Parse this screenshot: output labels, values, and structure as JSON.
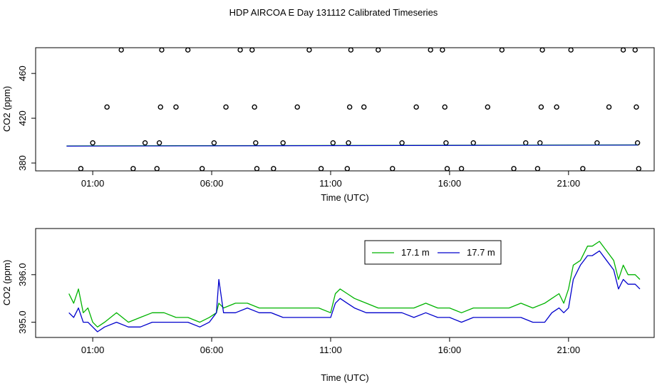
{
  "title": "HDP AIRCOA E  Day 131112  Calibrated Timeseries",
  "chart_data": [
    {
      "type": "scatter",
      "xlabel": "Time (UTC)",
      "ylabel": "CO2 (ppm)",
      "x_unit": "hours UTC",
      "xlim": [
        -1.4,
        24.6
      ],
      "ylim": [
        373,
        483
      ],
      "x_ticks": [
        {
          "value": 1,
          "label": "01:00"
        },
        {
          "value": 6,
          "label": "06:00"
        },
        {
          "value": 11,
          "label": "11:00"
        },
        {
          "value": 16,
          "label": "16:00"
        },
        {
          "value": 21,
          "label": "21:00"
        }
      ],
      "y_ticks": [
        {
          "value": 380,
          "label": "380"
        },
        {
          "value": 420,
          "label": "420"
        },
        {
          "value": 460,
          "label": "460"
        }
      ],
      "series": [
        {
          "marker": "open-circle",
          "color": "#000000",
          "points": [
            [
              0.5,
              375
            ],
            [
              1.0,
              398
            ],
            [
              1.6,
              430
            ],
            [
              2.2,
              481
            ],
            [
              2.7,
              375
            ],
            [
              3.2,
              398
            ],
            [
              3.7,
              375
            ],
            [
              3.8,
              398
            ],
            [
              3.85,
              430
            ],
            [
              3.9,
              481
            ],
            [
              4.5,
              430
            ],
            [
              5.0,
              481
            ],
            [
              5.6,
              375
            ],
            [
              6.1,
              398
            ],
            [
              6.6,
              430
            ],
            [
              7.2,
              481
            ],
            [
              7.7,
              481
            ],
            [
              7.8,
              430
            ],
            [
              7.85,
              398
            ],
            [
              7.9,
              375
            ],
            [
              8.6,
              375
            ],
            [
              9.0,
              398
            ],
            [
              9.6,
              430
            ],
            [
              10.1,
              481
            ],
            [
              10.6,
              375
            ],
            [
              11.1,
              398
            ],
            [
              11.7,
              375
            ],
            [
              11.75,
              398
            ],
            [
              11.8,
              430
            ],
            [
              11.85,
              481
            ],
            [
              12.4,
              430
            ],
            [
              13.0,
              481
            ],
            [
              13.6,
              375
            ],
            [
              14.0,
              398
            ],
            [
              14.6,
              430
            ],
            [
              15.2,
              481
            ],
            [
              15.7,
              481
            ],
            [
              15.8,
              430
            ],
            [
              15.85,
              398
            ],
            [
              15.9,
              375
            ],
            [
              16.5,
              375
            ],
            [
              17.0,
              398
            ],
            [
              17.6,
              430
            ],
            [
              18.2,
              481
            ],
            [
              18.7,
              375
            ],
            [
              19.2,
              398
            ],
            [
              19.7,
              375
            ],
            [
              19.8,
              398
            ],
            [
              19.85,
              430
            ],
            [
              19.9,
              481
            ],
            [
              20.5,
              430
            ],
            [
              21.1,
              481
            ],
            [
              21.6,
              375
            ],
            [
              22.2,
              398
            ],
            [
              22.7,
              430
            ],
            [
              23.3,
              481
            ],
            [
              23.8,
              481
            ],
            [
              23.85,
              430
            ],
            [
              23.9,
              398
            ],
            [
              23.95,
              375
            ]
          ]
        },
        {
          "name": "17.1 m",
          "type": "line",
          "color": "#00b300",
          "x": [
            -0.1,
            23.9
          ],
          "y": [
            395.3,
            396.2
          ]
        },
        {
          "name": "17.7 m",
          "type": "line",
          "color": "#0000cc",
          "x": [
            -0.1,
            23.9
          ],
          "y": [
            395.1,
            396.0
          ]
        }
      ]
    },
    {
      "type": "line",
      "xlabel": "Time (UTC)",
      "ylabel": "CO2 (ppm)",
      "x_unit": "hours UTC",
      "xlim": [
        -1.4,
        24.6
      ],
      "ylim": [
        394.68,
        396.97
      ],
      "x_ticks": [
        {
          "value": 1,
          "label": "01:00"
        },
        {
          "value": 6,
          "label": "06:00"
        },
        {
          "value": 11,
          "label": "11:00"
        },
        {
          "value": 16,
          "label": "16:00"
        },
        {
          "value": 21,
          "label": "21:00"
        }
      ],
      "y_ticks": [
        {
          "value": 395.0,
          "label": "395.0"
        },
        {
          "value": 396.0,
          "label": "396.0"
        }
      ],
      "legend": {
        "position": "top-right"
      },
      "x": [
        0.0,
        0.2,
        0.4,
        0.6,
        0.8,
        1.0,
        1.2,
        1.5,
        2.0,
        2.5,
        3.0,
        3.5,
        4.0,
        4.5,
        5.0,
        5.5,
        5.9,
        6.2,
        6.3,
        6.5,
        7.0,
        7.5,
        8.0,
        8.5,
        9.0,
        9.5,
        10.0,
        10.5,
        11.0,
        11.2,
        11.4,
        11.7,
        12.0,
        12.5,
        13.0,
        13.5,
        14.0,
        14.5,
        15.0,
        15.5,
        16.0,
        16.5,
        17.0,
        17.5,
        18.0,
        18.5,
        19.0,
        19.5,
        20.0,
        20.3,
        20.6,
        20.8,
        21.0,
        21.2,
        21.5,
        21.8,
        22.0,
        22.3,
        22.6,
        22.9,
        23.1,
        23.3,
        23.5,
        23.8,
        24.0
      ],
      "series": [
        {
          "name": "17.1 m",
          "color": "#00b300",
          "values": [
            395.6,
            395.4,
            395.7,
            395.2,
            395.3,
            395.0,
            394.9,
            395.0,
            395.2,
            395.0,
            395.1,
            395.2,
            395.2,
            395.1,
            395.1,
            395.0,
            395.1,
            395.2,
            395.4,
            395.3,
            395.4,
            395.4,
            395.3,
            395.3,
            395.3,
            395.3,
            395.3,
            395.3,
            395.2,
            395.6,
            395.7,
            395.6,
            395.5,
            395.4,
            395.3,
            395.3,
            395.3,
            395.3,
            395.4,
            395.3,
            395.3,
            395.2,
            395.3,
            395.3,
            395.3,
            395.3,
            395.4,
            395.3,
            395.4,
            395.5,
            395.6,
            395.4,
            395.7,
            396.2,
            396.3,
            396.6,
            396.6,
            396.7,
            396.5,
            396.3,
            395.9,
            396.2,
            396.0,
            396.0,
            395.9
          ]
        },
        {
          "name": "17.7 m",
          "color": "#0000cc",
          "values": [
            395.2,
            395.1,
            395.3,
            395.0,
            395.0,
            394.9,
            394.8,
            394.9,
            395.0,
            394.9,
            394.9,
            395.0,
            395.0,
            395.0,
            395.0,
            394.9,
            395.0,
            395.2,
            395.9,
            395.2,
            395.2,
            395.3,
            395.2,
            395.2,
            395.1,
            395.1,
            395.1,
            395.1,
            395.1,
            395.4,
            395.5,
            395.4,
            395.3,
            395.2,
            395.2,
            395.2,
            395.2,
            395.1,
            395.2,
            395.1,
            395.1,
            395.0,
            395.1,
            395.1,
            395.1,
            395.1,
            395.1,
            395.0,
            395.0,
            395.2,
            395.3,
            395.2,
            395.3,
            395.9,
            396.2,
            396.4,
            396.4,
            396.5,
            396.3,
            396.1,
            395.7,
            395.9,
            395.8,
            395.8,
            395.7
          ]
        }
      ]
    }
  ]
}
